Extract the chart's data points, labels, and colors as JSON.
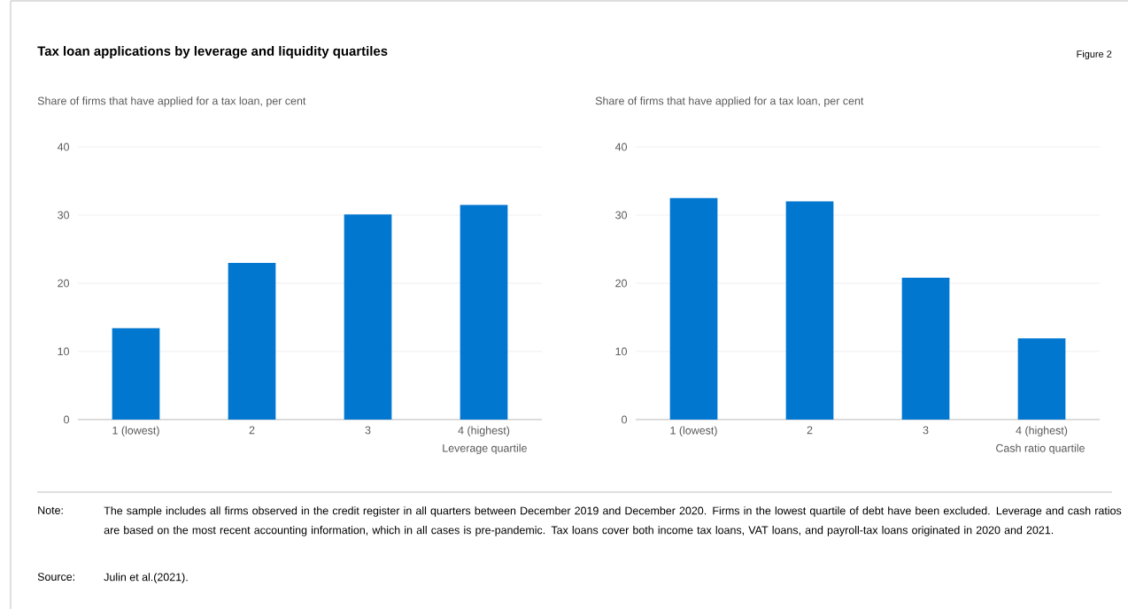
{
  "chart_data": [
    {
      "type": "bar",
      "title": "Tax loan applications by leverage and liquidity quartiles",
      "subtitle": "Share of firms that have applied for a tax loan, per cent",
      "xlabel": "Leverage quartile",
      "categories": [
        "1 (lowest)",
        "2",
        "3",
        "4 (highest)"
      ],
      "values": [
        13.4,
        23.0,
        30.1,
        31.5
      ],
      "color": "#0277d0",
      "ylim": [
        0,
        40
      ],
      "yticks": [
        0,
        10,
        20,
        30,
        40
      ],
      "grid": "y",
      "annotations": [
        "Figure 2",
        "Note:",
        "The sample includes all firms observed in the credit register in all quarters between December 2019 and December 2020. Firms in the lowest quartile of debt have been excluded. Leverage and cash ratios are based on the most recent accounting information, which in all cases is pre-pandemic. Tax loans cover both income tax loans, VAT loans, and payroll-tax loans originated in 2020 and 2021.",
        "Source:",
        "Julin et al.(2021)."
      ]
    },
    {
      "type": "bar",
      "subtitle": "Share of firms that have applied for a tax loan, per cent",
      "xlabel": "Cash ratio quartile",
      "categories": [
        "1 (lowest)",
        "2",
        "3",
        "4 (highest)"
      ],
      "values": [
        32.5,
        32.0,
        20.8,
        11.9
      ],
      "color": "#0277d0",
      "ylim": [
        0,
        40
      ],
      "yticks": [
        0,
        10,
        20,
        30,
        40
      ],
      "grid": "y"
    }
  ]
}
